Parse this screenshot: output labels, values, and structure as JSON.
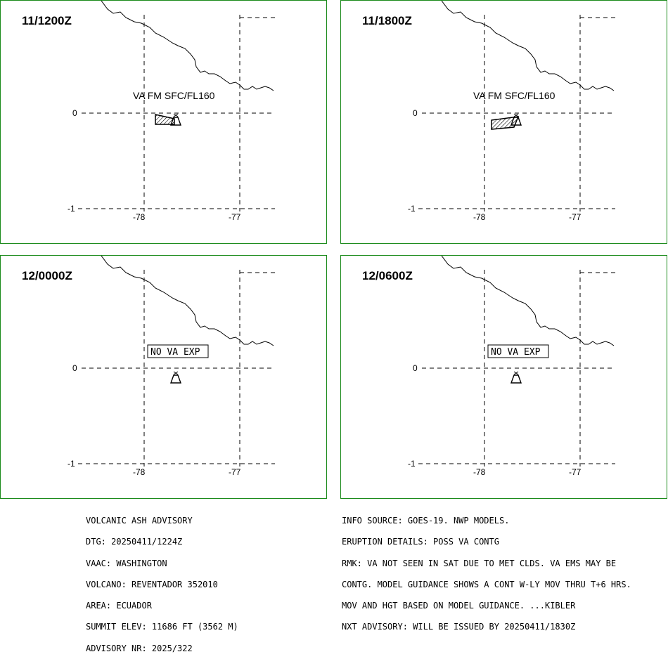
{
  "panels": [
    {
      "id": "tl",
      "time": "11/1200Z",
      "status": "VA FM SFC/FL160",
      "ash": "a",
      "lat_labels": [
        "0",
        "-1"
      ],
      "lon_labels": [
        "-78",
        "-77"
      ]
    },
    {
      "id": "tr",
      "time": "11/1800Z",
      "status": "VA FM SFC/FL160",
      "ash": "b",
      "lat_labels": [
        "0",
        "-1"
      ],
      "lon_labels": [
        "-78",
        "-77"
      ]
    },
    {
      "id": "bl",
      "time": "12/0000Z",
      "status": "NO VA EXP",
      "ash": "",
      "lat_labels": [
        "0",
        "-1"
      ],
      "lon_labels": [
        "-78",
        "-77"
      ]
    },
    {
      "id": "br",
      "time": "12/0600Z",
      "status": "NO VA EXP",
      "ash": "",
      "lat_labels": [
        "0",
        "-1"
      ],
      "lon_labels": [
        "-78",
        "-77"
      ]
    }
  ],
  "advisory_left": [
    "VOLCANIC ASH ADVISORY",
    "DTG: 20250411/1224Z",
    "VAAC: WASHINGTON",
    "VOLCANO: REVENTADOR 352010",
    "AREA: ECUADOR",
    "SUMMIT ELEV: 11686 FT (3562 M)",
    "ADVISORY NR: 2025/322"
  ],
  "advisory_right": [
    "INFO SOURCE: GOES-19. NWP MODELS.",
    "ERUPTION DETAILS: POSS VA CONTG",
    "RMK: VA NOT SEEN IN SAT DUE TO MET CLDS. VA EMS MAY BE",
    "CONTG. MODEL GUIDANCE SHOWS A CONT W-LY MOV THRU T+6 HRS.",
    "MOV AND HGT BASED ON MODEL GUIDANCE. ...KIBLER",
    "NXT ADVISORY: WILL BE ISSUED BY 20250411/1830Z"
  ],
  "colors": {
    "frame": "#1a8a1a",
    "ink": "#000000"
  }
}
